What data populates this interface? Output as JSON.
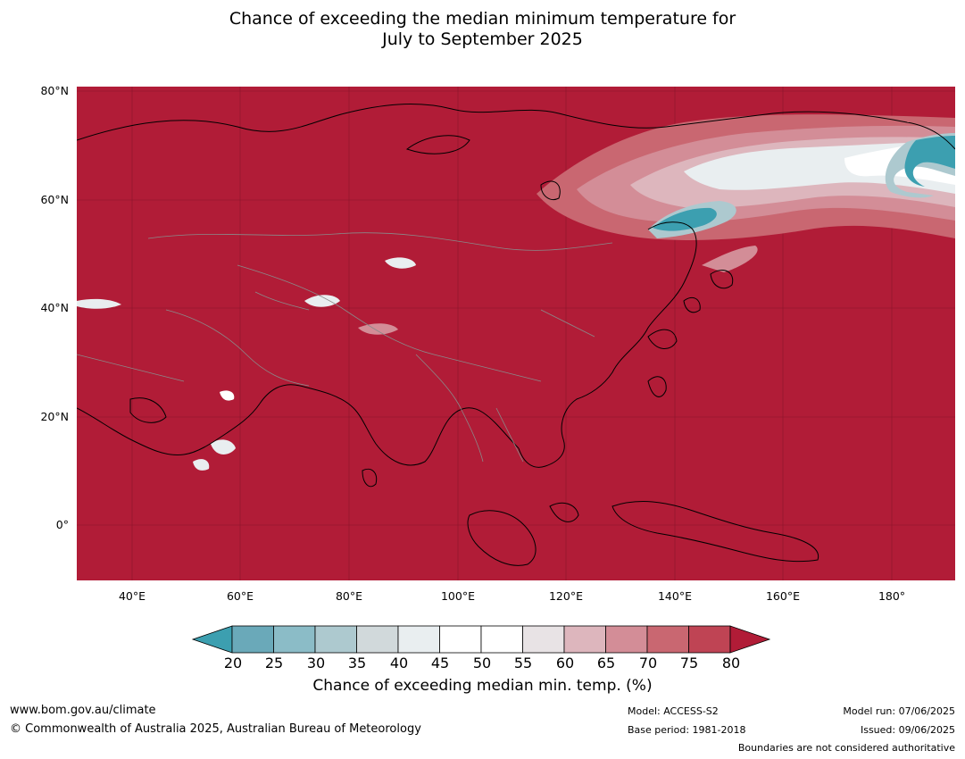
{
  "title_line1": "Chance of exceeding the median minimum temperature for",
  "title_line2": "July to September 2025",
  "map": {
    "background_color": "#b11c37",
    "lat_labels": [
      "80°N",
      "60°N",
      "40°N",
      "20°N",
      "0°"
    ],
    "lon_labels": [
      "40°E",
      "60°E",
      "80°E",
      "100°E",
      "120°E",
      "140°E",
      "160°E",
      "180°"
    ]
  },
  "colorbar": {
    "ticks": [
      "20",
      "25",
      "30",
      "35",
      "40",
      "45",
      "50",
      "55",
      "60",
      "65",
      "70",
      "75",
      "80"
    ],
    "colors": [
      "#3c9fb0",
      "#6aa9b9",
      "#8bbcc7",
      "#adc9cf",
      "#d1d9db",
      "#e9eef0",
      "#ffffff",
      "#ffffff",
      "#e8e3e5",
      "#ddb6bd",
      "#d38d97",
      "#c96771",
      "#bf4454",
      "#b11c37"
    ],
    "label": "Chance of exceeding median min. temp. (%)"
  },
  "footer": {
    "website": "www.bom.gov.au/climate",
    "copyright": "© Commonwealth of Australia 2025, Australian Bureau of Meteorology",
    "model": "Model: ACCESS-S2",
    "base_period": "Base period: 1981-2018",
    "model_run": "Model run: 07/06/2025",
    "issued": "Issued: 09/06/2025",
    "boundaries_note": "Boundaries are not considered authoritative"
  }
}
